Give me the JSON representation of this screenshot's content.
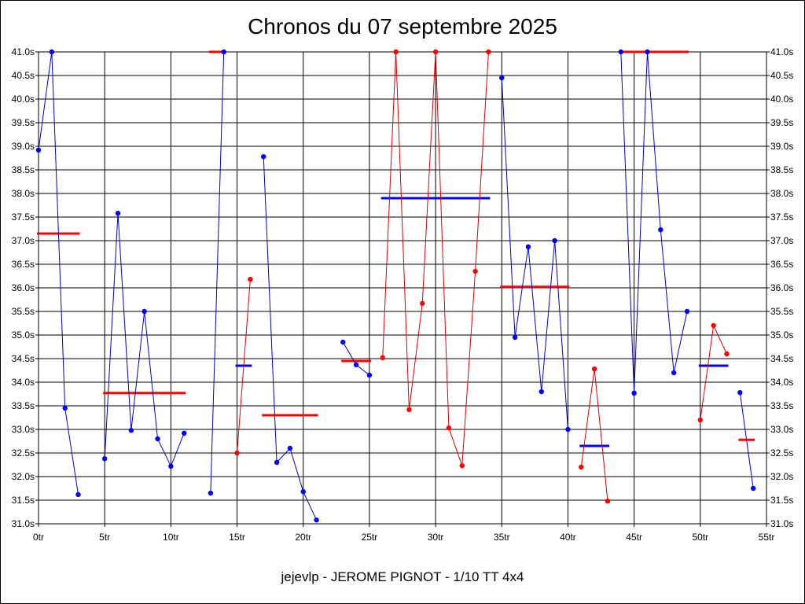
{
  "chart_data": {
    "type": "line",
    "title": "Chronos du 07 septembre 2025",
    "subtitle": "jejevlp - JEROME PIGNOT - 1/10 TT 4x4",
    "xlim": [
      0,
      55
    ],
    "ylim": [
      31.0,
      41.0
    ],
    "x_ticks": [
      0,
      5,
      10,
      15,
      20,
      25,
      30,
      35,
      40,
      45,
      50,
      55
    ],
    "x_tick_labels": [
      "0tr",
      "5tr",
      "10tr",
      "15tr",
      "20tr",
      "25tr",
      "30tr",
      "35tr",
      "40tr",
      "45tr",
      "50tr",
      "55tr"
    ],
    "y_ticks": [
      31.0,
      31.5,
      32.0,
      32.5,
      33.0,
      33.5,
      34.0,
      34.5,
      35.0,
      35.5,
      36.0,
      36.5,
      37.0,
      37.5,
      38.0,
      38.5,
      39.0,
      39.5,
      40.0,
      40.5,
      41.0
    ],
    "y_tick_labels": [
      "31.0s",
      "31.5s",
      "32.0s",
      "32.5s",
      "33.0s",
      "33.5s",
      "34.0s",
      "34.5s",
      "35.0s",
      "35.5s",
      "36.0s",
      "36.5s",
      "37.0s",
      "37.5s",
      "38.0s",
      "38.5s",
      "39.0s",
      "39.5s",
      "40.0s",
      "40.5s",
      "41.0s"
    ],
    "grid": true,
    "colors": {
      "blue": "#0000ff",
      "red": "#ff0000",
      "line_blue": "#0000cc",
      "line_red": "#dd0000"
    },
    "segments": [
      {
        "color": "blue",
        "points": [
          [
            0,
            38.92
          ],
          [
            1,
            41.0
          ],
          [
            2,
            33.45
          ],
          [
            3,
            31.62
          ]
        ],
        "average": 37.15,
        "average_color": "red",
        "average_range": [
          0,
          3
        ]
      },
      {
        "color": "blue",
        "points": [
          [
            5,
            32.38
          ],
          [
            6,
            37.58
          ],
          [
            7,
            32.98
          ],
          [
            8,
            35.5
          ],
          [
            9,
            32.8
          ],
          [
            10,
            32.22
          ],
          [
            11,
            32.92
          ]
        ],
        "average": 33.77,
        "average_color": "red",
        "average_range": [
          5,
          11
        ]
      },
      {
        "color": "blue",
        "points": [
          [
            13,
            31.65
          ],
          [
            14,
            41.0
          ]
        ],
        "average": 41.0,
        "average_color": "red",
        "average_range": [
          13,
          14
        ]
      },
      {
        "color": "red",
        "points": [
          [
            15,
            32.5
          ],
          [
            16,
            36.18
          ]
        ],
        "average": 34.35,
        "average_color": "blue",
        "average_range": [
          15,
          16
        ]
      },
      {
        "color": "blue",
        "points": [
          [
            17,
            38.78
          ],
          [
            18,
            32.3
          ],
          [
            19,
            32.6
          ],
          [
            20,
            31.68
          ],
          [
            21,
            31.08
          ]
        ],
        "average": 33.3,
        "average_color": "red",
        "average_range": [
          17,
          21
        ]
      },
      {
        "color": "blue",
        "points": [
          [
            23,
            34.85
          ],
          [
            24,
            34.37
          ],
          [
            25,
            34.15
          ]
        ],
        "average": 34.45,
        "average_color": "red",
        "average_range": [
          23,
          25
        ]
      },
      {
        "color": "red",
        "points": [
          [
            26,
            34.52
          ],
          [
            27,
            41.0
          ],
          [
            28,
            33.42
          ],
          [
            29,
            35.67
          ],
          [
            30,
            41.0
          ],
          [
            31,
            33.03
          ],
          [
            32,
            32.23
          ],
          [
            33,
            36.35
          ],
          [
            34,
            41.0
          ]
        ],
        "average": 37.9,
        "average_color": "blue",
        "average_range": [
          26,
          34
        ]
      },
      {
        "color": "blue",
        "points": [
          [
            35,
            40.45
          ],
          [
            36,
            34.95
          ],
          [
            37,
            36.87
          ],
          [
            38,
            33.8
          ],
          [
            39,
            37.0
          ],
          [
            40,
            33.0
          ]
        ],
        "average": 36.02,
        "average_color": "red",
        "average_range": [
          35,
          40
        ]
      },
      {
        "color": "red",
        "points": [
          [
            41,
            32.2
          ],
          [
            42,
            34.28
          ],
          [
            43,
            31.48
          ]
        ],
        "average": 32.65,
        "average_color": "blue",
        "average_range": [
          41,
          43
        ]
      },
      {
        "color": "blue",
        "points": [
          [
            44,
            41.0
          ],
          [
            45,
            33.77
          ],
          [
            46,
            41.0
          ],
          [
            47,
            37.23
          ],
          [
            48,
            34.2
          ],
          [
            49,
            35.5
          ]
        ],
        "average": 41.0,
        "average_color": "red",
        "average_range": [
          44,
          49
        ]
      },
      {
        "color": "red",
        "points": [
          [
            50,
            33.2
          ],
          [
            51,
            35.2
          ],
          [
            52,
            34.6
          ]
        ],
        "average": 34.35,
        "average_color": "blue",
        "average_range": [
          50,
          52
        ]
      },
      {
        "color": "blue",
        "points": [
          [
            53,
            33.78
          ],
          [
            54,
            31.75
          ]
        ],
        "average": 32.78,
        "average_color": "red",
        "average_range": [
          53,
          54
        ]
      }
    ]
  }
}
